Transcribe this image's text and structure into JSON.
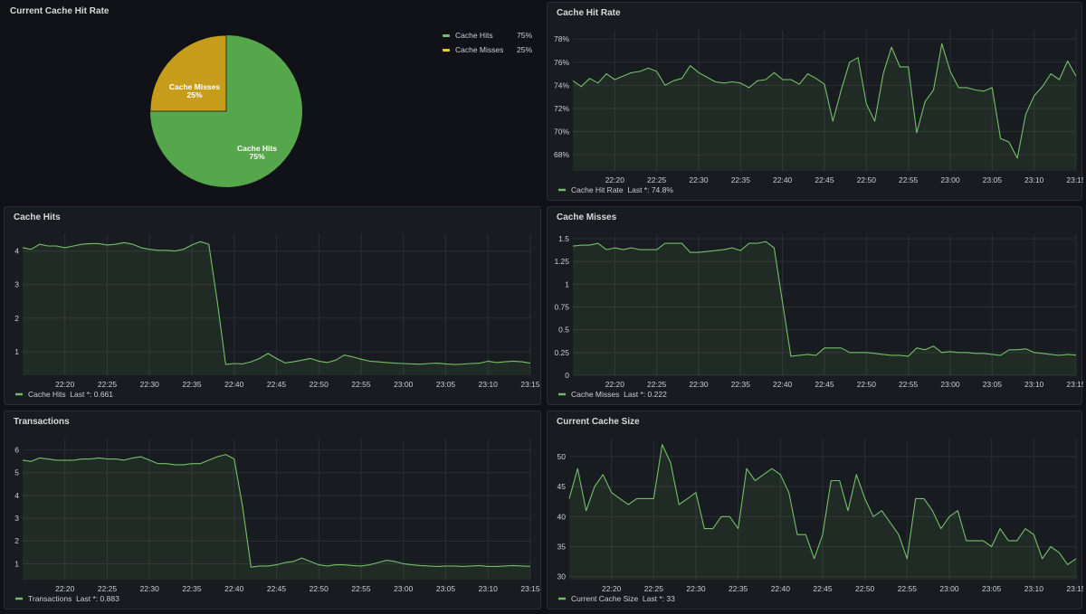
{
  "colors": {
    "green": "#73bf69",
    "pie_green": "#56a64b",
    "pie_yellow": "#c69d1b",
    "legend_yellow": "#f2cc0c",
    "fill": "rgba(115,191,105,0.10)"
  },
  "pie_panel": {
    "title": "Current Cache Hit Rate",
    "legend": [
      {
        "name": "Cache Hits",
        "value": "75%"
      },
      {
        "name": "Cache Misses",
        "value": "25%"
      }
    ],
    "slice_labels": [
      {
        "name": "Cache Hits",
        "pct": "75%"
      },
      {
        "name": "Cache Misses",
        "pct": "25%"
      }
    ]
  },
  "chart_data": [
    {
      "type": "pie",
      "title": "Current Cache Hit Rate",
      "categories": [
        "Cache Hits",
        "Cache Misses"
      ],
      "values": [
        75,
        25
      ],
      "legend": "top-right"
    },
    {
      "type": "area",
      "title": "Cache Hit Rate",
      "x_ticks": [
        "22:20",
        "22:25",
        "22:30",
        "22:35",
        "22:40",
        "22:45",
        "22:50",
        "22:55",
        "23:00",
        "23:05",
        "23:10",
        "23:15"
      ],
      "y_ticks": [
        "68%",
        "70%",
        "72%",
        "74%",
        "76%",
        "78%"
      ],
      "ylim": [
        66.6,
        78.8
      ],
      "grid": true,
      "series": [
        {
          "name": "Cache Hit Rate",
          "legend": "Cache Hit Rate  Last *: 74.8%",
          "values": [
            74.4,
            73.9,
            74.6,
            74.2,
            75.0,
            74.5,
            74.8,
            75.1,
            75.2,
            75.5,
            75.2,
            74.0,
            74.4,
            74.6,
            75.7,
            75.1,
            74.7,
            74.3,
            74.2,
            74.3,
            74.2,
            73.8,
            74.4,
            74.5,
            75.1,
            74.5,
            74.5,
            74.1,
            75.0,
            74.6,
            74.1,
            70.9,
            73.6,
            76.0,
            76.4,
            72.4,
            70.9,
            75.0,
            77.3,
            75.6,
            75.6,
            69.9,
            72.6,
            73.6,
            77.6,
            75.2,
            73.8,
            73.8,
            73.6,
            73.5,
            73.8,
            69.4,
            69.1,
            67.7,
            71.5,
            73.1,
            73.9,
            75.0,
            74.5,
            76.1,
            74.8
          ]
        }
      ]
    },
    {
      "type": "area",
      "title": "Cache Hits",
      "x_ticks": [
        "22:20",
        "22:25",
        "22:30",
        "22:35",
        "22:40",
        "22:45",
        "22:50",
        "22:55",
        "23:00",
        "23:05",
        "23:10",
        "23:15"
      ],
      "y_ticks": [
        "1",
        "2",
        "3",
        "4"
      ],
      "ylim": [
        0.3,
        4.5
      ],
      "grid": true,
      "series": [
        {
          "name": "Cache Hits",
          "legend": "Cache Hits  Last *: 0.661",
          "values": [
            4.1,
            4.05,
            4.2,
            4.15,
            4.15,
            4.1,
            4.15,
            4.2,
            4.22,
            4.22,
            4.18,
            4.2,
            4.25,
            4.2,
            4.1,
            4.05,
            4.02,
            4.02,
            4.0,
            4.05,
            4.18,
            4.28,
            4.2,
            2.5,
            0.62,
            0.65,
            0.64,
            0.7,
            0.8,
            0.95,
            0.8,
            0.67,
            0.7,
            0.75,
            0.8,
            0.72,
            0.68,
            0.75,
            0.9,
            0.85,
            0.78,
            0.72,
            0.7,
            0.68,
            0.66,
            0.65,
            0.64,
            0.63,
            0.65,
            0.66,
            0.64,
            0.62,
            0.63,
            0.65,
            0.66,
            0.72,
            0.68,
            0.7,
            0.72,
            0.7,
            0.661
          ]
        }
      ]
    },
    {
      "type": "area",
      "title": "Cache Misses",
      "x_ticks": [
        "22:20",
        "22:25",
        "22:30",
        "22:35",
        "22:40",
        "22:45",
        "22:50",
        "22:55",
        "23:00",
        "23:05",
        "23:10",
        "23:15"
      ],
      "y_ticks": [
        "0",
        "0.25",
        "0.5",
        "0.75",
        "1",
        "1.25",
        "1.5"
      ],
      "ylim": [
        0,
        1.55
      ],
      "grid": true,
      "series": [
        {
          "name": "Cache Misses",
          "legend": "Cache Misses  Last *: 0.222",
          "values": [
            1.42,
            1.43,
            1.43,
            1.45,
            1.38,
            1.4,
            1.38,
            1.4,
            1.38,
            1.38,
            1.38,
            1.45,
            1.45,
            1.45,
            1.35,
            1.35,
            1.36,
            1.37,
            1.38,
            1.4,
            1.37,
            1.45,
            1.45,
            1.47,
            1.4,
            0.8,
            0.21,
            0.22,
            0.23,
            0.22,
            0.3,
            0.3,
            0.3,
            0.25,
            0.25,
            0.25,
            0.24,
            0.23,
            0.22,
            0.22,
            0.21,
            0.3,
            0.28,
            0.32,
            0.25,
            0.26,
            0.25,
            0.25,
            0.24,
            0.24,
            0.23,
            0.22,
            0.28,
            0.28,
            0.29,
            0.25,
            0.24,
            0.23,
            0.22,
            0.23,
            0.222
          ]
        }
      ]
    },
    {
      "type": "area",
      "title": "Transactions",
      "x_ticks": [
        "22:20",
        "22:25",
        "22:30",
        "22:35",
        "22:40",
        "22:45",
        "22:50",
        "22:55",
        "23:00",
        "23:05",
        "23:10",
        "23:15"
      ],
      "y_ticks": [
        "1",
        "2",
        "3",
        "4",
        "5",
        "6"
      ],
      "ylim": [
        0.3,
        6.5
      ],
      "grid": true,
      "series": [
        {
          "name": "Transactions",
          "legend": "Transactions  Last *: 0.883",
          "values": [
            5.55,
            5.5,
            5.65,
            5.6,
            5.55,
            5.55,
            5.55,
            5.6,
            5.6,
            5.65,
            5.6,
            5.6,
            5.55,
            5.65,
            5.7,
            5.55,
            5.4,
            5.4,
            5.35,
            5.35,
            5.4,
            5.4,
            5.55,
            5.7,
            5.8,
            5.6,
            3.5,
            0.85,
            0.9,
            0.9,
            0.95,
            1.05,
            1.1,
            1.25,
            1.1,
            0.95,
            0.9,
            0.95,
            0.95,
            0.92,
            0.9,
            0.95,
            1.05,
            1.15,
            1.1,
            1.0,
            0.95,
            0.92,
            0.9,
            0.88,
            0.9,
            0.9,
            0.88,
            0.9,
            0.92,
            0.88,
            0.88,
            0.9,
            0.92,
            0.9,
            0.883
          ]
        }
      ]
    },
    {
      "type": "area",
      "title": "Current Cache Size",
      "x_ticks": [
        "22:20",
        "22:25",
        "22:30",
        "22:35",
        "22:40",
        "22:45",
        "22:50",
        "22:55",
        "23:00",
        "23:05",
        "23:10",
        "23:15"
      ],
      "y_ticks": [
        "30",
        "35",
        "40",
        "45",
        "50"
      ],
      "ylim": [
        29.5,
        53
      ],
      "grid": true,
      "series": [
        {
          "name": "Current Cache Size",
          "legend": "Current Cache Size  Last *: 33",
          "values": [
            43,
            48,
            41,
            45,
            47,
            44,
            43,
            42,
            43,
            43,
            43,
            52,
            49,
            42,
            43,
            44,
            38,
            38,
            40,
            40,
            38,
            48,
            46,
            47,
            48,
            47,
            44,
            37,
            37,
            33,
            37,
            46,
            46,
            41,
            47,
            43,
            40,
            41,
            39,
            37,
            33,
            43,
            43,
            41,
            38,
            40,
            41,
            36,
            36,
            36,
            35,
            38,
            36,
            36,
            38,
            37,
            33,
            35,
            34,
            32,
            33
          ]
        }
      ]
    }
  ]
}
